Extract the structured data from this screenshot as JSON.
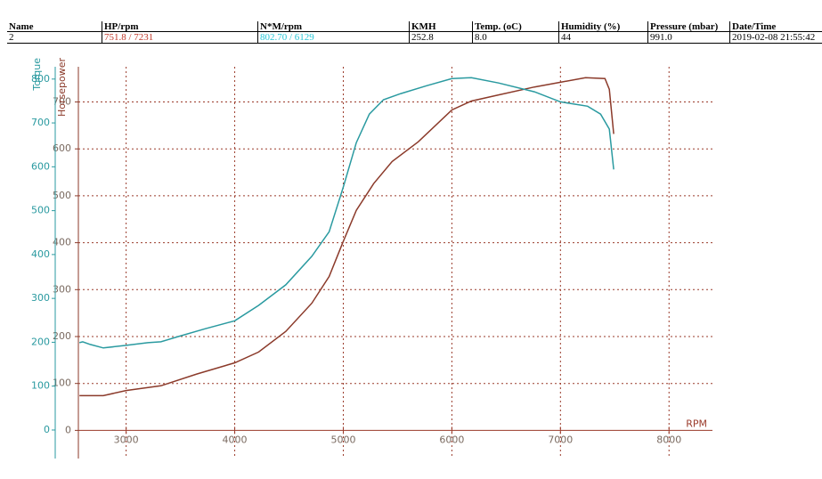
{
  "table": {
    "headers": [
      "Name",
      "HP/rpm",
      "N*M/rpm",
      "KMH",
      "Temp. (oC)",
      "Humidity (%)",
      "Pressure (mbar)",
      "Date/Time"
    ],
    "rows": [
      [
        "2",
        "751.8 / 7231",
        "802.70 / 6129",
        "252.8",
        "8.0",
        "44",
        "991.0",
        "2019-02-08 21:55:42"
      ]
    ]
  },
  "chart_data": {
    "type": "line",
    "xlabel": "RPM",
    "ylabel": "Horsepower",
    "y2label": "Torque",
    "xlim": [
      2560,
      8400
    ],
    "xticks": [
      3000,
      4000,
      5000,
      6000,
      7000,
      8000
    ],
    "ylim": [
      -60,
      775
    ],
    "yticks": [
      0,
      100,
      200,
      300,
      400,
      500,
      600,
      700
    ],
    "y2lim": [
      -65,
      828
    ],
    "y2ticks": [
      0,
      100,
      200,
      300,
      400,
      500,
      600,
      700,
      800
    ],
    "grid": true,
    "series": [
      {
        "name": "Horsepower",
        "color": "#8b3a2a",
        "x": [
          2570,
          2790,
          3000,
          3320,
          3650,
          4000,
          4220,
          4470,
          4710,
          4870,
          5000,
          5120,
          5280,
          5450,
          5690,
          6000,
          6180,
          6430,
          6760,
          7000,
          7231,
          7410,
          7450,
          7490
        ],
        "values": [
          74,
          74,
          85,
          95,
          120,
          144,
          167,
          211,
          271,
          328,
          403,
          469,
          526,
          573,
          615,
          683,
          702,
          715,
          732,
          742,
          751.8,
          750,
          727,
          632
        ]
      },
      {
        "name": "Torque",
        "color": "#2a9aa0",
        "axis": "y2",
        "x": [
          2570,
          2600,
          2670,
          2790,
          3000,
          3200,
          3320,
          3480,
          3730,
          4000,
          4220,
          4470,
          4710,
          4870,
          5000,
          5120,
          5240,
          5370,
          5530,
          5770,
          6000,
          6129,
          6180,
          6430,
          6760,
          7000,
          7250,
          7370,
          7450,
          7490
        ],
        "values": [
          199,
          201,
          195,
          187,
          193,
          199,
          201,
          213,
          231,
          249,
          284,
          331,
          396,
          452,
          554,
          655,
          720,
          753,
          767,
          785,
          801,
          802.7,
          803,
          791,
          771,
          748,
          738,
          720,
          686,
          594
        ]
      }
    ]
  }
}
